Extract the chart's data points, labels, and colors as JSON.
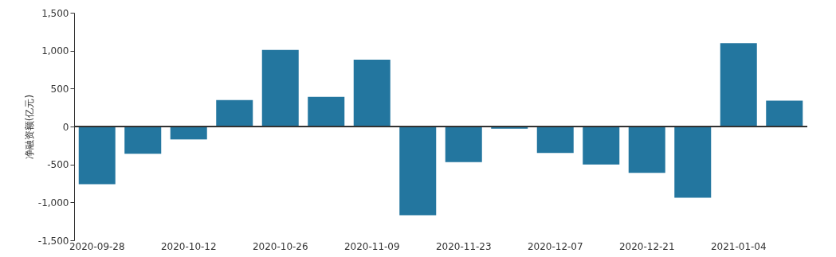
{
  "chart_data": {
    "type": "bar",
    "ylabel": "净融资额(亿元)",
    "categories": [
      "2020-09-28",
      null,
      "2020-10-12",
      null,
      "2020-10-26",
      null,
      "2020-11-09",
      null,
      "2020-11-23",
      null,
      "2020-12-07",
      null,
      "2020-12-21",
      null,
      "2021-01-04",
      null
    ],
    "values": [
      -760,
      -360,
      -170,
      350,
      1010,
      390,
      880,
      -1170,
      -470,
      -30,
      -350,
      -500,
      -610,
      -940,
      1100,
      340
    ],
    "color": "#23769f",
    "ylim": [
      -1500,
      1500
    ],
    "yticks": [
      {
        "value": -1500,
        "label": "-1,500"
      },
      {
        "value": -1000,
        "label": "-1,000"
      },
      {
        "value": -500,
        "label": "-500"
      },
      0,
      500,
      {
        "value": 1000,
        "label": "1,000"
      },
      {
        "value": 1500,
        "label": "1,500"
      }
    ]
  }
}
